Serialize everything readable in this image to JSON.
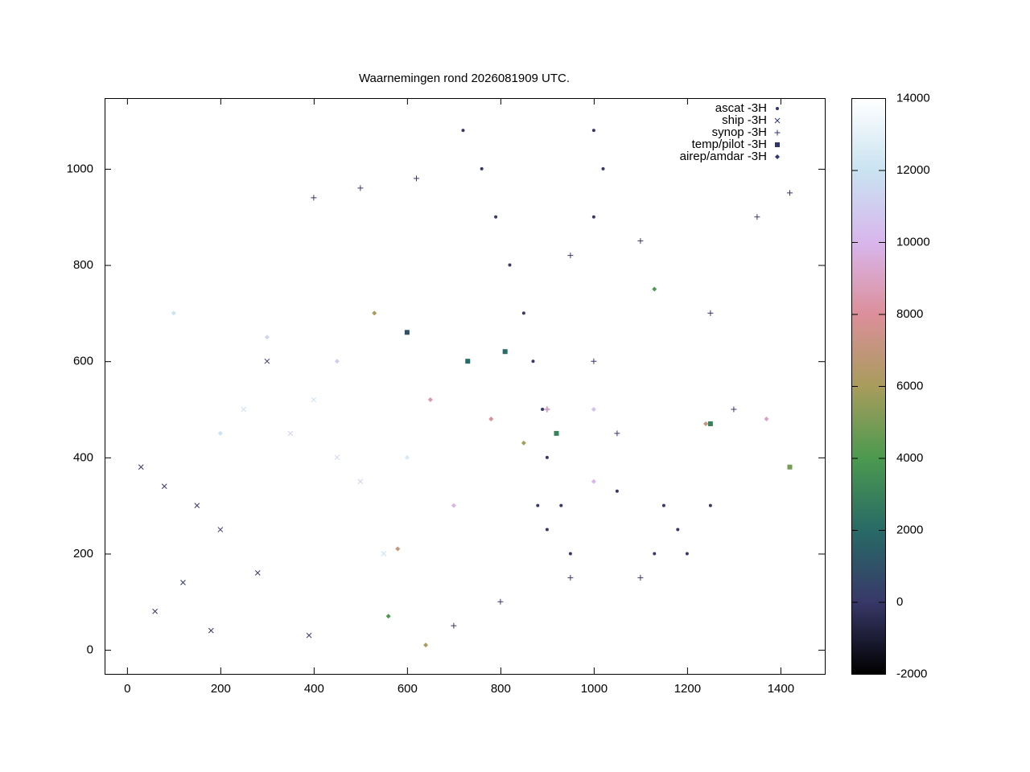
{
  "chart_data": {
    "type": "scatter",
    "title": "Waarnemingen rond 2026081909 UTC.",
    "xlim": [
      -48,
      1495
    ],
    "ylim": [
      -50,
      1147
    ],
    "xticks": [
      0,
      200,
      400,
      600,
      800,
      1000,
      1200,
      1400
    ],
    "yticks": [
      0,
      200,
      400,
      600,
      800,
      1000
    ],
    "cblim": [
      -2000,
      14000
    ],
    "cbticks": [
      -2000,
      0,
      2000,
      4000,
      6000,
      8000,
      10000,
      12000,
      14000
    ],
    "palette": [
      "#000000",
      "#383868",
      "#276a66",
      "#4b9a4f",
      "#a89c5c",
      "#dc8f9a",
      "#d8b6ec",
      "#c9e3f1",
      "#ffffff"
    ],
    "legend_position": "top-right",
    "series": [
      {
        "name": "ascat -3H",
        "marker": "dot",
        "x": [
          720,
          760,
          790,
          820,
          850,
          870,
          890,
          900,
          880,
          900,
          1000,
          1020,
          1000,
          1150,
          1180,
          1200,
          1130,
          1250,
          930,
          950,
          1050
        ],
        "y": [
          1080,
          1000,
          900,
          800,
          700,
          600,
          500,
          400,
          300,
          250,
          1080,
          1000,
          900,
          300,
          250,
          200,
          200,
          300,
          300,
          200,
          330
        ],
        "z": [
          0,
          0,
          0,
          0,
          0,
          0,
          0,
          0,
          0,
          0,
          0,
          0,
          0,
          0,
          0,
          0,
          0,
          0,
          0,
          0,
          0
        ]
      },
      {
        "name": "ship -3H",
        "marker": "x",
        "x": [
          30,
          80,
          150,
          200,
          300,
          250,
          350,
          400,
          450,
          500,
          60,
          120,
          180,
          390,
          280,
          550
        ],
        "y": [
          380,
          340,
          300,
          250,
          600,
          500,
          450,
          520,
          400,
          350,
          80,
          140,
          40,
          30,
          160,
          200
        ],
        "z": [
          0,
          0,
          0,
          0,
          0,
          12000,
          11000,
          12000,
          11500,
          11000,
          0,
          0,
          0,
          0,
          0,
          12000
        ]
      },
      {
        "name": "synop -3H",
        "marker": "plus",
        "x": [
          400,
          500,
          620,
          950,
          1100,
          1250,
          1350,
          1000,
          900,
          1050,
          800,
          700,
          1100,
          950,
          1300,
          1420
        ],
        "y": [
          940,
          960,
          980,
          820,
          850,
          700,
          900,
          600,
          500,
          450,
          100,
          50,
          150,
          150,
          500,
          950
        ],
        "z": [
          0,
          0,
          0,
          0,
          0,
          0,
          0,
          0,
          0,
          0,
          0,
          0,
          0,
          0,
          0,
          0
        ]
      },
      {
        "name": "temp/pilot -3H",
        "marker": "square",
        "x": [
          810,
          1250,
          1420,
          730,
          920,
          600
        ],
        "y": [
          620,
          470,
          380,
          600,
          450,
          660
        ],
        "z": [
          2000,
          3000,
          5000,
          2000,
          3000,
          1000
        ]
      },
      {
        "name": "airep/amdar -3H",
        "marker": "diamond",
        "x": [
          530,
          560,
          900,
          780,
          1000,
          300,
          200,
          450,
          600,
          100,
          700,
          1000,
          1240,
          1130,
          650,
          850,
          1370,
          580,
          640
        ],
        "y": [
          700,
          70,
          500,
          480,
          350,
          650,
          450,
          600,
          400,
          700,
          300,
          500,
          470,
          750,
          520,
          430,
          480,
          210,
          10
        ],
        "z": [
          6000,
          4000,
          9000,
          8000,
          10000,
          11500,
          12000,
          11000,
          12500,
          12000,
          10000,
          10500,
          7000,
          4000,
          8500,
          6000,
          9000,
          7000,
          6000
        ]
      }
    ]
  }
}
